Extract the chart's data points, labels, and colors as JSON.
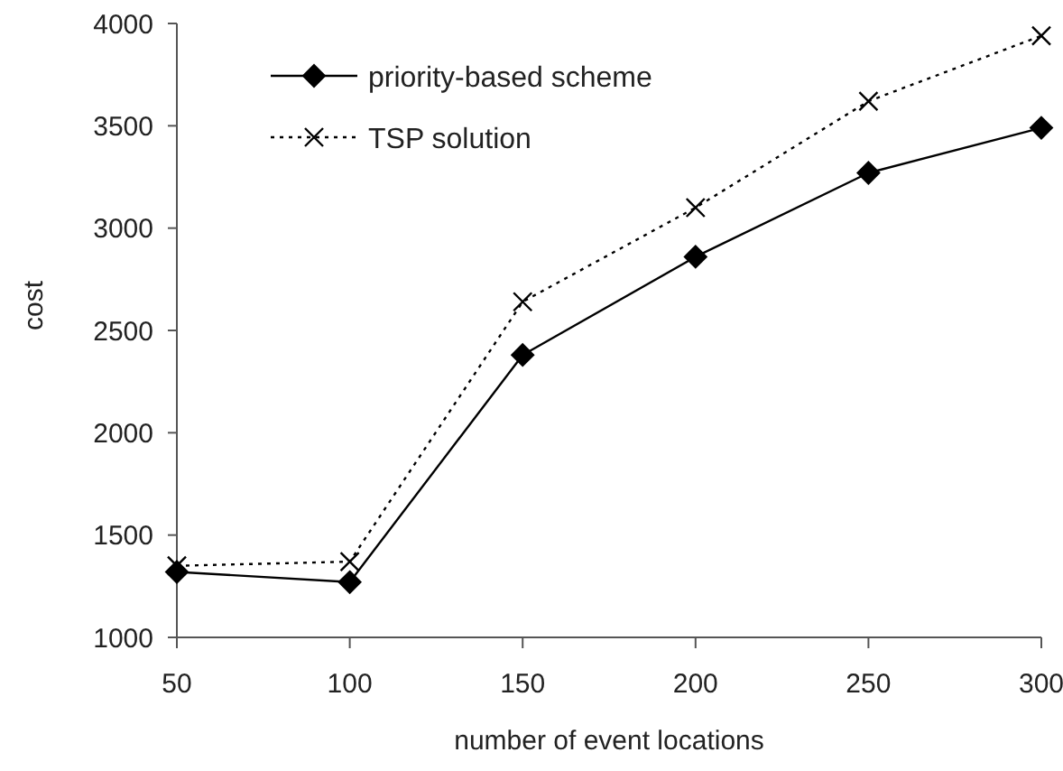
{
  "chart_data": {
    "type": "line",
    "xlabel": "number of event locations",
    "ylabel": "cost",
    "categories": [
      "50",
      "100",
      "150",
      "200",
      "250",
      "300"
    ],
    "series": [
      {
        "name": "priority-based scheme",
        "color": "#000000",
        "marker": "diamond",
        "line_style": "solid",
        "values": [
          1320,
          1270,
          2380,
          2860,
          3270,
          3490
        ]
      },
      {
        "name": "TSP solution",
        "color": "#000000",
        "marker": "cross",
        "line_style": "dotted",
        "values": [
          1350,
          1370,
          2640,
          3100,
          3620,
          3940
        ]
      }
    ],
    "ylim": [
      1000,
      4000
    ],
    "yticks": [
      1000,
      1500,
      2000,
      2500,
      3000,
      3500,
      4000
    ],
    "grid": false,
    "legend": "top left"
  }
}
